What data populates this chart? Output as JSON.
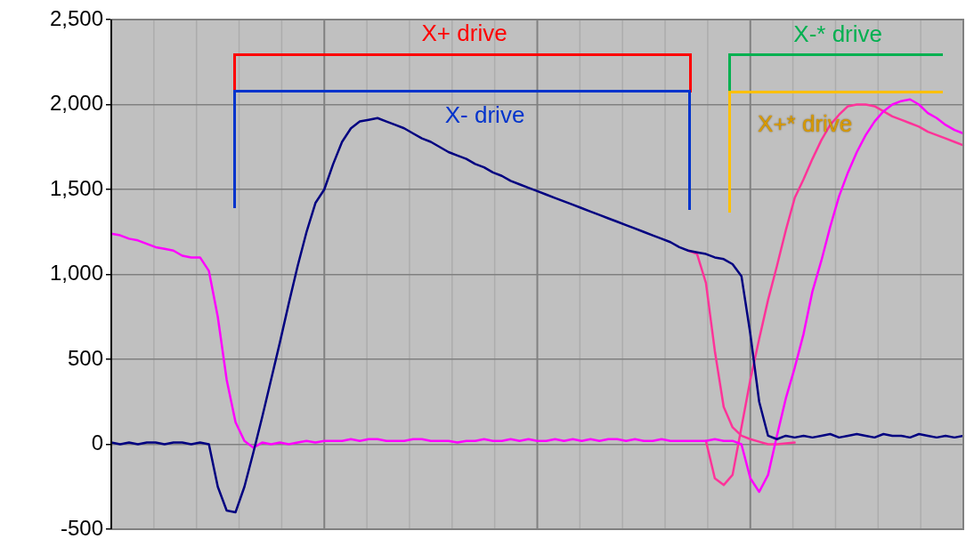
{
  "chart_data": {
    "type": "line",
    "categories": [
      null,
      null,
      null,
      null,
      null,
      null,
      null,
      null,
      null,
      null,
      null,
      null,
      null,
      null,
      null,
      null,
      null,
      null,
      null,
      null,
      null,
      null,
      null,
      null,
      null,
      null,
      null,
      null,
      null,
      null,
      null,
      null,
      null,
      null,
      null,
      null,
      null,
      null,
      null,
      null,
      null,
      null,
      null,
      null,
      null,
      null,
      null,
      null,
      null,
      null,
      null,
      null,
      null,
      null,
      null,
      null,
      null,
      null,
      null,
      null,
      null,
      null,
      null,
      null,
      null,
      null,
      null,
      null,
      null,
      null,
      null,
      null,
      null,
      null,
      null,
      null,
      null,
      null,
      null,
      null,
      null,
      null,
      null,
      null,
      null,
      null,
      null,
      null,
      null,
      null,
      null,
      null,
      null,
      null,
      null,
      null,
      null
    ],
    "series": [
      {
        "color": "#000080",
        "values": [
          10,
          0,
          10,
          0,
          10,
          10,
          0,
          10,
          10,
          0,
          10,
          0,
          -250,
          -390,
          -400,
          -250,
          -50,
          160,
          380,
          600,
          830,
          1050,
          1250,
          1420,
          1500,
          1650,
          1780,
          1860,
          1900,
          1910,
          1920,
          1900,
          1880,
          1860,
          1830,
          1800,
          1780,
          1750,
          1720,
          1700,
          1680,
          1650,
          1630,
          1600,
          1580,
          1550,
          1530,
          1510,
          1490,
          1470,
          1450,
          1430,
          1410,
          1390,
          1370,
          1350,
          1330,
          1310,
          1290,
          1270,
          1250,
          1230,
          1210,
          1190,
          1160,
          1140,
          1130,
          1120,
          1100,
          1090,
          1060,
          990,
          650,
          250,
          50,
          30,
          50,
          40,
          50,
          40,
          50,
          60,
          40,
          50,
          60,
          50,
          40,
          60,
          50,
          50,
          40,
          60,
          50,
          40,
          50,
          40,
          50
        ]
      },
      {
        "color": "#ff00ff",
        "values": [
          1240,
          1230,
          1210,
          1200,
          1180,
          1160,
          1150,
          1140,
          1110,
          1100,
          1100,
          1020,
          750,
          380,
          130,
          20,
          -20,
          10,
          0,
          10,
          0,
          10,
          20,
          10,
          20,
          20,
          20,
          30,
          20,
          30,
          30,
          20,
          20,
          20,
          30,
          30,
          20,
          20,
          20,
          10,
          20,
          20,
          30,
          20,
          20,
          30,
          20,
          30,
          20,
          20,
          30,
          20,
          30,
          20,
          30,
          20,
          30,
          30,
          20,
          30,
          20,
          20,
          30,
          20,
          20,
          20,
          20,
          20,
          30,
          20,
          20,
          0,
          -200,
          -280,
          -180,
          50,
          270,
          450,
          650,
          900,
          1080,
          1280,
          1460,
          1600,
          1720,
          1820,
          1900,
          1960,
          2000,
          2020,
          2030,
          2000,
          1950,
          1920,
          1880,
          1850,
          1830
        ]
      },
      {
        "color": "#ff3399",
        "values": [
          null,
          null,
          null,
          null,
          null,
          null,
          null,
          null,
          null,
          null,
          null,
          null,
          null,
          null,
          null,
          null,
          null,
          null,
          null,
          null,
          null,
          null,
          null,
          null,
          null,
          null,
          null,
          null,
          null,
          null,
          null,
          null,
          null,
          null,
          null,
          null,
          null,
          null,
          null,
          null,
          null,
          null,
          null,
          null,
          null,
          null,
          null,
          null,
          null,
          null,
          null,
          null,
          null,
          null,
          null,
          null,
          null,
          null,
          null,
          null,
          null,
          null,
          null,
          null,
          null,
          1140,
          1120,
          950,
          550,
          220,
          100,
          50,
          30,
          15,
          0,
          0,
          5,
          10,
          null,
          null,
          null,
          null,
          null,
          null,
          null,
          null,
          null,
          null,
          null,
          null,
          null,
          null,
          null,
          null,
          null,
          null,
          null
        ]
      },
      {
        "color": "#ff3399",
        "values": [
          null,
          null,
          null,
          null,
          null,
          null,
          null,
          null,
          null,
          null,
          null,
          null,
          null,
          null,
          null,
          null,
          null,
          null,
          null,
          null,
          null,
          null,
          null,
          null,
          null,
          null,
          null,
          null,
          null,
          null,
          null,
          null,
          null,
          null,
          null,
          null,
          null,
          null,
          null,
          null,
          null,
          null,
          null,
          null,
          null,
          null,
          null,
          null,
          null,
          null,
          null,
          null,
          null,
          null,
          null,
          null,
          null,
          null,
          null,
          null,
          null,
          null,
          null,
          null,
          null,
          null,
          null,
          20,
          -200,
          -240,
          -180,
          100,
          380,
          620,
          850,
          1050,
          1260,
          1450,
          1560,
          1680,
          1790,
          1880,
          1940,
          1990,
          2000,
          2000,
          1990,
          1960,
          1930,
          1910,
          1890,
          1870,
          1840,
          1820,
          1800,
          1780,
          1760
        ]
      }
    ],
    "ylim": [
      -500,
      2500
    ],
    "yticks": [
      {
        "value": -500,
        "label": "-500"
      },
      {
        "value": 0,
        "label": "0"
      },
      {
        "value": 500,
        "label": "500"
      },
      {
        "value": 1000,
        "label": "1,000"
      },
      {
        "value": 1500,
        "label": "1,500"
      },
      {
        "value": 2000,
        "label": "2,000"
      },
      {
        "value": 2500,
        "label": "2,500"
      }
    ],
    "grid": true,
    "legend": false,
    "marker": "none",
    "line_style": "solid",
    "tick_labels": "y",
    "annotations": [
      "X+ drive",
      "X- drive",
      "X-* drive",
      "X+* drive"
    ]
  }
}
